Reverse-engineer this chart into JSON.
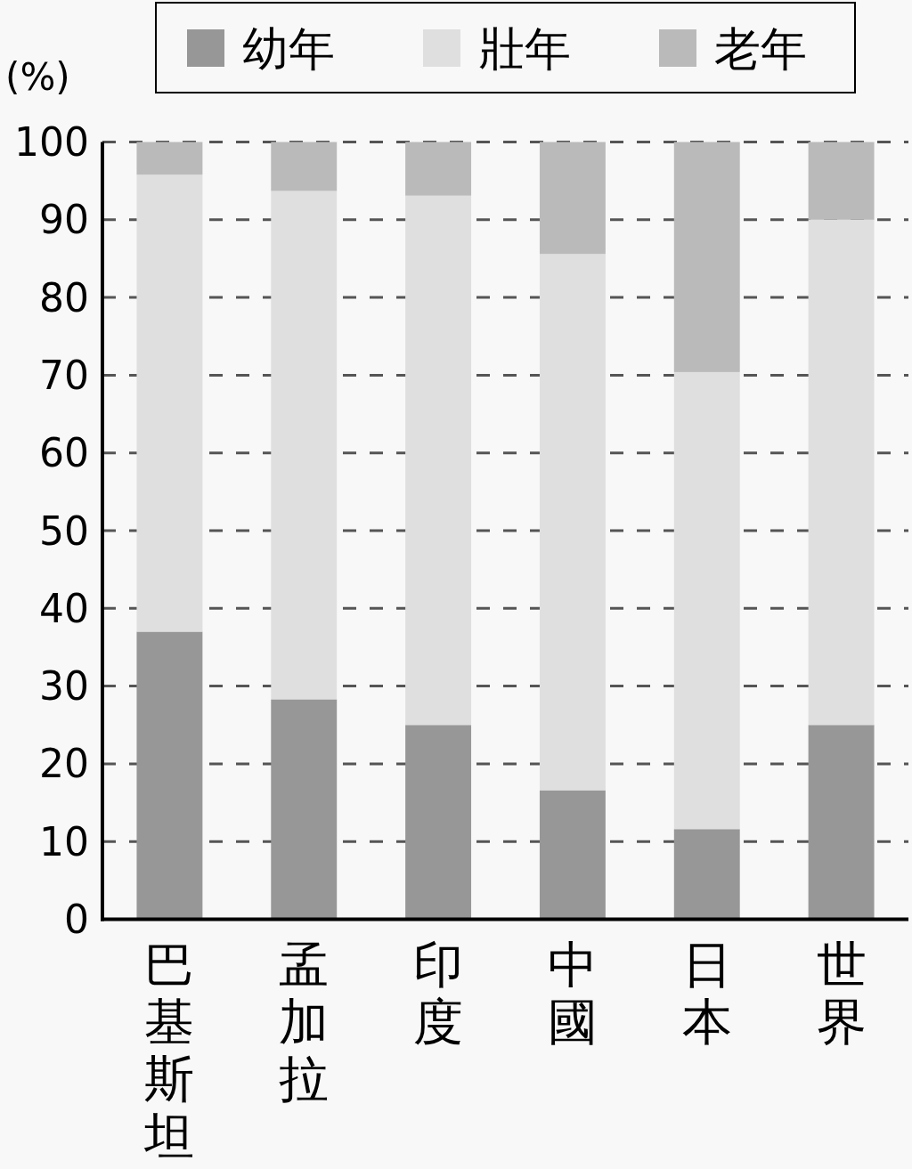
{
  "chart_data": {
    "type": "bar",
    "stacked": true,
    "ylabel": "(%)",
    "categories": [
      "巴基斯坦",
      "孟加拉",
      "印度",
      "中國",
      "日本",
      "世界"
    ],
    "series": [
      {
        "name": "幼年",
        "color": "#979797",
        "values": [
          37,
          28.3,
          25,
          16.6,
          11.6,
          25
        ]
      },
      {
        "name": "壯年",
        "color": "#dfdfdf",
        "values": [
          58.8,
          65.4,
          68.1,
          69,
          58.8,
          65
        ]
      },
      {
        "name": "老年",
        "color": "#bababa",
        "values": [
          4.2,
          6.3,
          6.9,
          14.4,
          29.6,
          10
        ]
      }
    ],
    "ylim": [
      0,
      100
    ],
    "yticks": [
      0,
      10,
      20,
      30,
      40,
      50,
      60,
      70,
      80,
      90,
      100
    ],
    "grid": "y",
    "legend": "top"
  }
}
